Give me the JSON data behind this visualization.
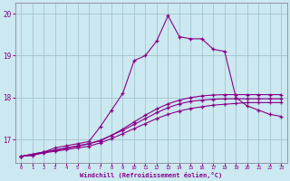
{
  "xlabel": "Windchill (Refroidissement éolien,°C)",
  "bg_color": "#cce8f0",
  "line_color": "#880088",
  "xlim": [
    -0.5,
    23.5
  ],
  "ylim": [
    16.45,
    20.25
  ],
  "yticks": [
    17,
    18,
    19,
    20
  ],
  "xticks": [
    0,
    1,
    2,
    3,
    4,
    5,
    6,
    7,
    8,
    9,
    10,
    11,
    12,
    13,
    14,
    15,
    16,
    17,
    18,
    19,
    20,
    21,
    22,
    23
  ],
  "series": [
    {
      "x": [
        0,
        1,
        2,
        3,
        4,
        5,
        6,
        7,
        8,
        9,
        10,
        11,
        12,
        13,
        14,
        15,
        16,
        17,
        18,
        19,
        20,
        21,
        22,
        23
      ],
      "y": [
        16.6,
        16.62,
        16.68,
        16.72,
        16.76,
        16.8,
        16.84,
        16.92,
        17.02,
        17.14,
        17.26,
        17.38,
        17.5,
        17.6,
        17.68,
        17.74,
        17.78,
        17.82,
        17.84,
        17.86,
        17.88,
        17.88,
        17.88,
        17.88
      ]
    },
    {
      "x": [
        0,
        1,
        2,
        3,
        4,
        5,
        6,
        7,
        8,
        9,
        10,
        11,
        12,
        13,
        14,
        15,
        16,
        17,
        18,
        19,
        20,
        21,
        22,
        23
      ],
      "y": [
        16.6,
        16.63,
        16.7,
        16.75,
        16.8,
        16.85,
        16.9,
        16.97,
        17.1,
        17.22,
        17.36,
        17.5,
        17.64,
        17.76,
        17.85,
        17.91,
        17.94,
        17.96,
        17.97,
        17.97,
        17.97,
        17.97,
        17.97,
        17.97
      ]
    },
    {
      "x": [
        0,
        2,
        3,
        4,
        5,
        6,
        7,
        8,
        9,
        10,
        11,
        12,
        13,
        14,
        15,
        16,
        17,
        18,
        19,
        20,
        21,
        22,
        23
      ],
      "y": [
        16.6,
        16.7,
        16.74,
        16.79,
        16.84,
        16.9,
        16.98,
        17.1,
        17.25,
        17.42,
        17.58,
        17.73,
        17.85,
        17.94,
        18.0,
        18.04,
        18.06,
        18.07,
        18.07,
        18.07,
        18.07,
        18.07,
        18.07
      ]
    },
    {
      "x": [
        0,
        2,
        3,
        4,
        5,
        6,
        7,
        8,
        9,
        10,
        11,
        12,
        13,
        14,
        15,
        16,
        17,
        18,
        19,
        20,
        21,
        22,
        23
      ],
      "y": [
        16.6,
        16.7,
        16.8,
        16.85,
        16.9,
        16.95,
        17.3,
        17.7,
        18.1,
        18.88,
        19.0,
        19.35,
        19.95,
        19.45,
        19.4,
        19.4,
        19.15,
        19.1,
        18.0,
        17.8,
        17.7,
        17.6,
        17.55
      ]
    }
  ]
}
